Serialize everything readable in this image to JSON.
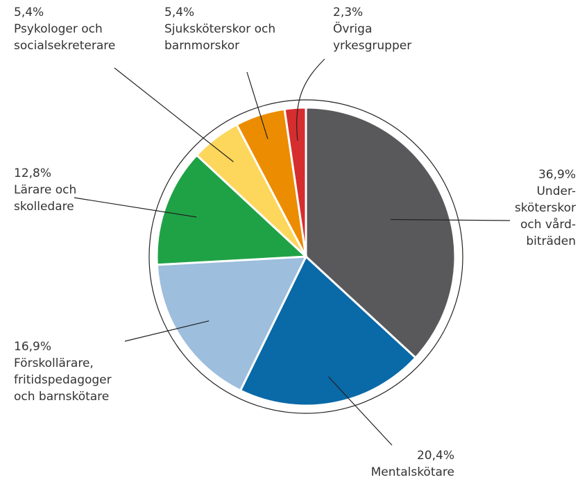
{
  "chart_data": {
    "type": "pie",
    "categories": [
      "Under-\nsköterskor\noch vård-\nbiträden",
      "Mentalskötare",
      "Förskollärare,\nfritidspedagoger\noch barnskötare",
      "Lärare och\nskolledare",
      "Psykologer och\nsocialsekreterare",
      "Sjuksköterskor och\nbarnmorskor",
      "Övriga\nyrkesgrupper"
    ],
    "values": [
      36.9,
      20.4,
      16.9,
      12.8,
      5.4,
      5.4,
      2.3
    ],
    "value_labels": [
      "36,9%",
      "20,4%",
      "16,9%",
      "12,8%",
      "5,4%",
      "5,4%",
      "2,3%"
    ],
    "colors": [
      "#59595b",
      "#0a69a7",
      "#9dbedc",
      "#1fa246",
      "#fdd65c",
      "#ec8c00",
      "#d62d2f"
    ]
  }
}
